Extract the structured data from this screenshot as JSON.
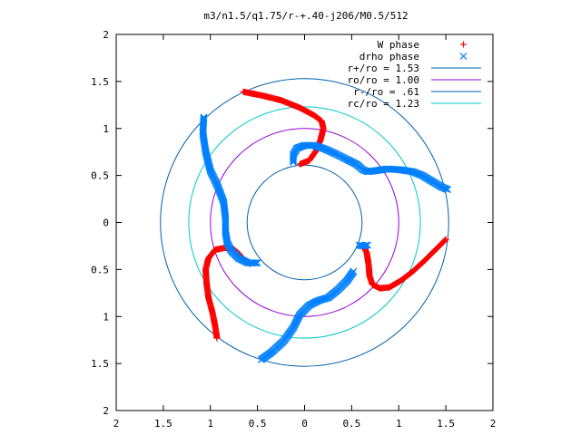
{
  "chart_data": {
    "type": "scatter",
    "title": "m3/n1.5/q1.75/r-+.40-j206/M0.5/512",
    "xlim": [
      -2,
      2
    ],
    "ylim": [
      -2,
      2
    ],
    "x_ticks": [
      {
        "v": -2,
        "label": "2"
      },
      {
        "v": -1.5,
        "label": "1.5"
      },
      {
        "v": -1,
        "label": "1"
      },
      {
        "v": -0.5,
        "label": "0.5"
      },
      {
        "v": 0,
        "label": "0"
      },
      {
        "v": 0.5,
        "label": "0.5"
      },
      {
        "v": 1,
        "label": "1"
      },
      {
        "v": 1.5,
        "label": "1.5"
      },
      {
        "v": 2,
        "label": "2"
      }
    ],
    "y_ticks": [
      {
        "v": 2,
        "label": "2"
      },
      {
        "v": 1.5,
        "label": "1.5"
      },
      {
        "v": 1,
        "label": "1"
      },
      {
        "v": 0.5,
        "label": "0.5"
      },
      {
        "v": 0,
        "label": "0"
      },
      {
        "v": -0.5,
        "label": "0.5"
      },
      {
        "v": -1,
        "label": "1"
      },
      {
        "v": -1.5,
        "label": "1.5"
      },
      {
        "v": -2,
        "label": "2"
      }
    ],
    "grid": false,
    "legend_position": "top-right",
    "circles": [
      {
        "label": "r+/ro = 1.53",
        "r": 1.53,
        "color": "#0060ad"
      },
      {
        "label": "ro/ro = 1.00",
        "r": 1.0,
        "color": "#9400d3"
      },
      {
        "label": "r-/ro = .61",
        "r": 0.61,
        "color": "#0060ad"
      },
      {
        "label": "rc/ro = 1.23",
        "r": 1.23,
        "color": "#00c8c8"
      }
    ],
    "series": [
      {
        "name": "W phase",
        "marker": "plus",
        "color": "#ff0000",
        "arms": [
          [
            [
              -0.65,
              1.39
            ],
            [
              -0.45,
              1.35
            ],
            [
              -0.25,
              1.3
            ],
            [
              -0.05,
              1.22
            ],
            [
              0.1,
              1.14
            ],
            [
              0.18,
              1.08
            ],
            [
              0.2,
              1.0
            ],
            [
              0.17,
              0.88
            ],
            [
              0.12,
              0.76
            ],
            [
              0.05,
              0.66
            ],
            [
              -0.05,
              0.62
            ]
          ],
          [
            [
              1.5,
              -0.18
            ],
            [
              1.4,
              -0.28
            ],
            [
              1.28,
              -0.4
            ],
            [
              1.15,
              -0.52
            ],
            [
              1.02,
              -0.62
            ],
            [
              0.9,
              -0.69
            ],
            [
              0.8,
              -0.7
            ],
            [
              0.72,
              -0.66
            ],
            [
              0.69,
              -0.57
            ],
            [
              0.68,
              -0.45
            ],
            [
              0.66,
              -0.32
            ],
            [
              0.62,
              -0.24
            ]
          ],
          [
            [
              -0.93,
              -1.23
            ],
            [
              -0.95,
              -1.1
            ],
            [
              -0.98,
              -0.95
            ],
            [
              -1.02,
              -0.8
            ],
            [
              -1.04,
              -0.65
            ],
            [
              -1.05,
              -0.5
            ],
            [
              -1.02,
              -0.38
            ],
            [
              -0.95,
              -0.29
            ],
            [
              -0.85,
              -0.27
            ],
            [
              -0.76,
              -0.28
            ],
            [
              -0.7,
              -0.33
            ],
            [
              -0.64,
              -0.4
            ],
            [
              -0.58,
              -0.44
            ]
          ]
        ]
      },
      {
        "name": "drho phase",
        "marker": "cross",
        "color": "#0080ff",
        "arms": [
          [
            [
              -1.07,
              1.12
            ],
            [
              -1.08,
              0.95
            ],
            [
              -1.05,
              0.75
            ],
            [
              -1.0,
              0.55
            ],
            [
              -0.92,
              0.38
            ],
            [
              -0.86,
              0.22
            ],
            [
              -0.84,
              0.05
            ],
            [
              -0.84,
              -0.1
            ],
            [
              -0.82,
              -0.22
            ],
            [
              -0.78,
              -0.3
            ],
            [
              -0.7,
              -0.38
            ],
            [
              -0.6,
              -0.43
            ],
            [
              -0.5,
              -0.43
            ]
          ],
          [
            [
              -0.46,
              -1.46
            ],
            [
              -0.35,
              -1.38
            ],
            [
              -0.22,
              -1.26
            ],
            [
              -0.12,
              -1.12
            ],
            [
              -0.05,
              -0.98
            ],
            [
              0.05,
              -0.88
            ],
            [
              0.15,
              -0.83
            ],
            [
              0.25,
              -0.8
            ],
            [
              0.35,
              -0.72
            ],
            [
              0.45,
              -0.62
            ],
            [
              0.52,
              -0.52
            ]
          ],
          [
            [
              0.67,
              -0.24
            ],
            [
              0.62,
              -0.25
            ],
            [
              0.58,
              -0.24
            ]
          ],
          [
            [
              -0.12,
              0.64
            ],
            [
              -0.12,
              0.72
            ],
            [
              -0.08,
              0.79
            ],
            [
              0.0,
              0.82
            ],
            [
              0.1,
              0.82
            ],
            [
              0.22,
              0.78
            ],
            [
              0.33,
              0.73
            ],
            [
              0.45,
              0.67
            ],
            [
              0.55,
              0.62
            ],
            [
              0.62,
              0.56
            ],
            [
              0.67,
              0.54
            ],
            [
              0.75,
              0.55
            ],
            [
              0.88,
              0.57
            ],
            [
              1.02,
              0.56
            ],
            [
              1.15,
              0.54
            ],
            [
              1.25,
              0.5
            ],
            [
              1.35,
              0.44
            ],
            [
              1.45,
              0.38
            ],
            [
              1.52,
              0.35
            ]
          ]
        ]
      }
    ]
  }
}
